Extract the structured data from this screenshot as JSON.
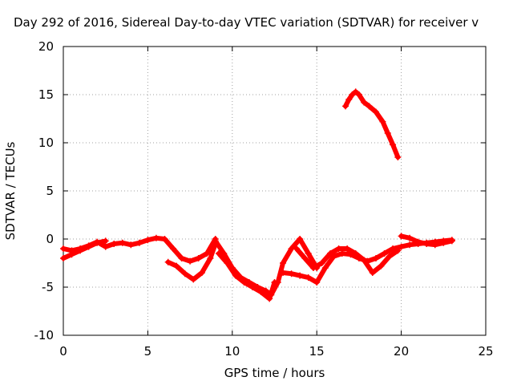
{
  "chart_data": {
    "type": "scatter",
    "title": "Day 292 of 2016, Sidereal Day-to-day VTEC variation (SDTVAR) for receiver v",
    "xlabel": "GPS time / hours",
    "ylabel": "SDTVAR / TECUs",
    "xlim": [
      0,
      25
    ],
    "ylim": [
      -10,
      20
    ],
    "x_ticks": [
      "0",
      "5",
      "10",
      "15",
      "20",
      "25"
    ],
    "y_ticks": [
      "-10",
      "-5",
      "0",
      "5",
      "10",
      "15",
      "20"
    ],
    "grid": true,
    "marker": "+",
    "series_color": "#ff0000",
    "series": [
      {
        "x": [
          0,
          0.5,
          1,
          1.5,
          2,
          2.5,
          3,
          3.5,
          4,
          4.5,
          5,
          5.5,
          6,
          6.5,
          7,
          7.5,
          8,
          8.5,
          9
        ],
        "y": [
          -1.0,
          -1.2,
          -1.0,
          -0.7,
          -0.3,
          -0.8,
          -0.5,
          -0.4,
          -0.6,
          -0.4,
          -0.1,
          0.1,
          0.0,
          -1.0,
          -2.0,
          -2.3,
          -2.0,
          -1.5,
          0.0
        ]
      },
      {
        "x": [
          0,
          0.5,
          1,
          1.5,
          2,
          2.5
        ],
        "y": [
          -2.0,
          -1.6,
          -1.2,
          -0.8,
          -0.4,
          -0.2
        ]
      },
      {
        "x": [
          6.2,
          6.7,
          7.2,
          7.7,
          8.2,
          8.7,
          9.0
        ],
        "y": [
          -2.4,
          -2.8,
          -3.6,
          -4.2,
          -3.5,
          -2.0,
          -0.5
        ]
      },
      {
        "x": [
          9.0,
          9.5,
          10.0,
          10.5,
          11.0,
          11.5,
          12.0,
          12.3,
          12.7,
          13.0,
          13.5,
          14.0,
          14.5,
          15.0
        ],
        "y": [
          -0.2,
          -1.5,
          -3.0,
          -4.0,
          -4.5,
          -5.0,
          -5.4,
          -5.8,
          -4.5,
          -2.5,
          -1.0,
          0.0,
          -1.5,
          -3.0
        ]
      },
      {
        "x": [
          9.2,
          9.7,
          10.2,
          10.7,
          11.2,
          11.7,
          12.2,
          12.5
        ],
        "y": [
          -1.5,
          -2.5,
          -3.8,
          -4.5,
          -5.0,
          -5.5,
          -6.2,
          -4.5
        ]
      },
      {
        "x": [
          13.0,
          13.5,
          14.0,
          14.5,
          15.0,
          15.5,
          16.0,
          16.5,
          17.0,
          17.5,
          18.0,
          18.5,
          19.0,
          19.5,
          20.0,
          20.5,
          21.0,
          21.5,
          22.0,
          22.5,
          23.0
        ],
        "y": [
          -3.5,
          -3.6,
          -3.8,
          -4.0,
          -4.5,
          -3.0,
          -1.8,
          -1.5,
          -1.6,
          -2.0,
          -2.3,
          -2.0,
          -1.5,
          -1.0,
          -0.8,
          -0.6,
          -0.5,
          -0.4,
          -0.3,
          -0.2,
          -0.1
        ]
      },
      {
        "x": [
          13.8,
          14.3,
          14.8,
          15.3,
          15.8,
          16.3,
          16.8,
          17.3,
          17.8,
          18.3,
          18.8,
          19.3,
          19.8
        ],
        "y": [
          -1.0,
          -2.0,
          -3.0,
          -2.5,
          -1.5,
          -1.0,
          -1.0,
          -1.5,
          -2.2,
          -3.5,
          -2.8,
          -1.8,
          -1.2
        ]
      },
      {
        "x": [
          20.0,
          20.5,
          21.0,
          21.5,
          22.0,
          22.5,
          23.0
        ],
        "y": [
          0.3,
          0.1,
          -0.3,
          -0.5,
          -0.6,
          -0.4,
          -0.2
        ]
      },
      {
        "x": [
          16.7,
          16.9,
          17.1,
          17.3,
          17.5,
          17.8,
          18.1,
          18.5,
          18.9,
          19.2,
          19.5,
          19.8
        ],
        "y": [
          13.8,
          14.5,
          15.0,
          15.3,
          15.0,
          14.2,
          13.8,
          13.2,
          12.2,
          11.0,
          9.8,
          8.5
        ]
      }
    ]
  }
}
